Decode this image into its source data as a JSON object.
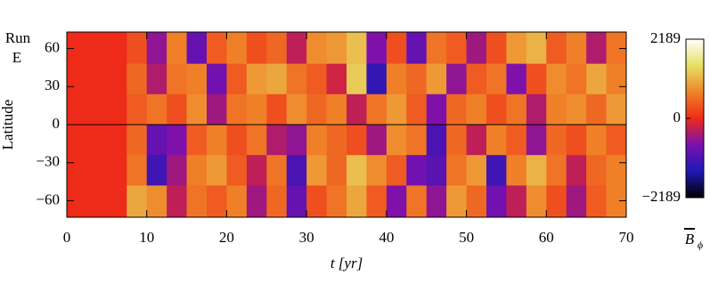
{
  "chart_data": {
    "type": "heatmap",
    "annotation_lines": [
      "Run",
      "E"
    ],
    "x_label": "t [yr]",
    "y_label": "Latitude",
    "xlim": [
      0,
      70
    ],
    "xticks": [
      0,
      10,
      20,
      30,
      40,
      50,
      60,
      70
    ],
    "ylim": [
      -73,
      73
    ],
    "yticks": [
      {
        "value": -60,
        "label": "−60"
      },
      {
        "value": -30,
        "label": "−30"
      },
      0,
      30,
      60
    ],
    "zero_line": true,
    "x_edges": [
      0,
      2.5,
      5,
      7.5,
      10,
      12.5,
      15,
      17.5,
      20,
      22.5,
      25,
      27.5,
      30,
      32.5,
      35,
      37.5,
      40,
      42.5,
      45,
      47.5,
      50,
      52.5,
      55,
      57.5,
      60,
      62.5,
      65,
      67.5,
      70
    ],
    "y_edges": [
      73,
      48,
      24,
      0,
      -24,
      -48,
      -73
    ],
    "z": [
      [
        0,
        0,
        0,
        300,
        -600,
        700,
        -900,
        400,
        700,
        300,
        500,
        -300,
        800,
        900,
        1200,
        -700,
        300,
        -900,
        600,
        400,
        -500,
        300,
        900,
        1100,
        400,
        700,
        -400,
        600
      ],
      [
        0,
        0,
        0,
        500,
        -400,
        600,
        700,
        -800,
        400,
        900,
        1000,
        600,
        400,
        -200,
        1300,
        -1300,
        700,
        500,
        900,
        -600,
        400,
        600,
        -700,
        300,
        800,
        600,
        1000,
        700
      ],
      [
        0,
        0,
        0,
        400,
        600,
        300,
        800,
        -500,
        600,
        700,
        300,
        800,
        500,
        700,
        -300,
        600,
        900,
        400,
        -700,
        500,
        700,
        300,
        600,
        -400,
        700,
        800,
        500,
        900
      ],
      [
        0,
        0,
        0,
        500,
        -900,
        -700,
        400,
        700,
        300,
        600,
        -400,
        -600,
        700,
        500,
        300,
        -500,
        800,
        600,
        -1100,
        500,
        -300,
        700,
        400,
        -600,
        500,
        300,
        700,
        400
      ],
      [
        0,
        0,
        0,
        600,
        -1200,
        -500,
        700,
        900,
        400,
        -300,
        600,
        -1100,
        900,
        500,
        1200,
        800,
        400,
        -800,
        -1000,
        600,
        900,
        -1200,
        700,
        1100,
        600,
        -300,
        500,
        700
      ],
      [
        0,
        0,
        0,
        1000,
        800,
        -300,
        600,
        400,
        700,
        -500,
        500,
        -900,
        300,
        600,
        1000,
        400,
        -700,
        600,
        -600,
        900,
        500,
        -800,
        -300,
        800,
        300,
        -500,
        400,
        700
      ]
    ],
    "colormap": [
      "#000000",
      "#1e18b4",
      "#7a10b0",
      "#ee2a18",
      "#f08428",
      "#e6e064",
      "#ffffff"
    ],
    "clim": [
      -2189,
      2189
    ],
    "cticks": [
      {
        "value": -2189,
        "label": "−2189"
      },
      0,
      2189
    ],
    "colorbar_label": "B",
    "colorbar_label_sub": "ϕ"
  }
}
